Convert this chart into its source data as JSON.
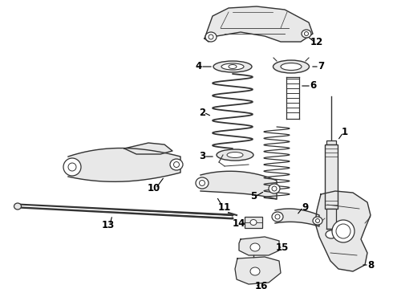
{
  "bg_color": "#ffffff",
  "line_color": "#333333",
  "label_color": "#000000",
  "figsize": [
    4.9,
    3.6
  ],
  "dpi": 100,
  "title": ""
}
